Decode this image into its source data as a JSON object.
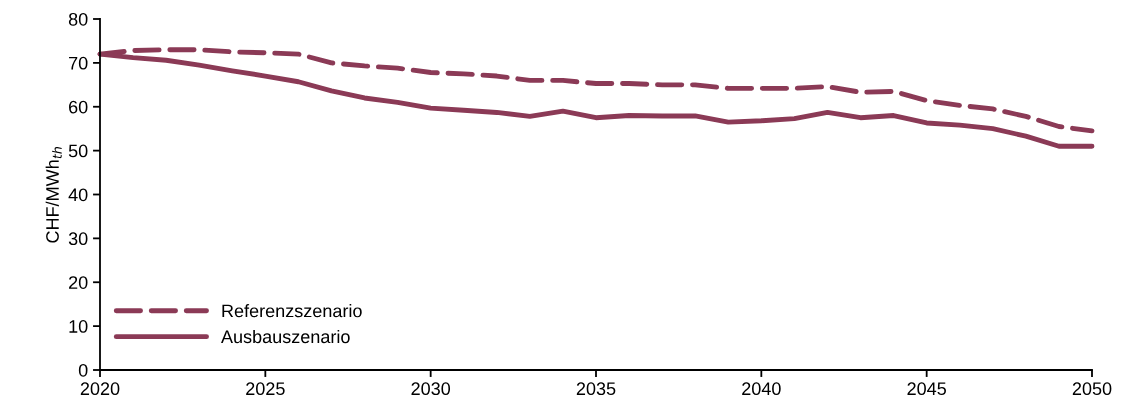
{
  "chart_data": {
    "type": "line",
    "ylabel": "CHF/MWh$_{th}$",
    "x": [
      2020,
      2021,
      2022,
      2023,
      2024,
      2025,
      2026,
      2027,
      2028,
      2029,
      2030,
      2031,
      2032,
      2033,
      2034,
      2035,
      2036,
      2037,
      2038,
      2039,
      2040,
      2041,
      2042,
      2043,
      2044,
      2045,
      2046,
      2047,
      2048,
      2049,
      2050
    ],
    "series": [
      {
        "name": "Referenzszenario",
        "color": "#8b3a56",
        "line_style": "dashed",
        "values": [
          72,
          72.8,
          73,
          73,
          72.5,
          72.3,
          72,
          70,
          69.3,
          68.8,
          67.8,
          67.5,
          67,
          66,
          66,
          65.3,
          65.3,
          65,
          65,
          64.2,
          64.2,
          64.2,
          64.6,
          63.3,
          63.5,
          61.4,
          60.3,
          59.5,
          57.8,
          55.5,
          54.5
        ]
      },
      {
        "name": "Ausbauszenario",
        "color": "#8b3a56",
        "line_style": "solid",
        "values": [
          72,
          71.2,
          70.6,
          69.5,
          68.2,
          67,
          65.7,
          63.6,
          62,
          61,
          59.7,
          59.2,
          58.7,
          57.8,
          59,
          57.5,
          58,
          57.9,
          57.9,
          56.5,
          56.8,
          57.3,
          58.7,
          57.5,
          58,
          56.3,
          55.8,
          55,
          53.3,
          51,
          51
        ]
      }
    ],
    "xlim": [
      2020,
      2050
    ],
    "xticks": [
      2020,
      2025,
      2030,
      2035,
      2040,
      2045,
      2050
    ],
    "ylim": [
      0,
      80
    ],
    "yticks": [
      0,
      10,
      20,
      30,
      40,
      50,
      60,
      70,
      80
    ],
    "grid": false,
    "legend": "bottom left",
    "marker": "none"
  }
}
